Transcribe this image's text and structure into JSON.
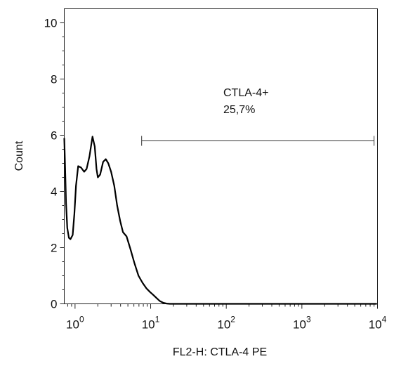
{
  "chart_data": {
    "type": "line",
    "title": "",
    "xlabel": "FL2-H:  CTLA-4 PE",
    "ylabel": "Count",
    "x_scale": "log",
    "xlim": [
      0.72,
      10000
    ],
    "ylim": [
      0,
      10.5
    ],
    "x_ticks": [
      {
        "value": 1,
        "base": "10",
        "exp": "0"
      },
      {
        "value": 10,
        "base": "10",
        "exp": "1"
      },
      {
        "value": 100,
        "base": "10",
        "exp": "2"
      },
      {
        "value": 1000,
        "base": "10",
        "exp": "3"
      },
      {
        "value": 10000,
        "base": "10",
        "exp": "4"
      }
    ],
    "y_ticks": [
      0,
      2,
      4,
      6,
      8,
      10
    ],
    "grid": false,
    "series": [
      {
        "color": "#000000",
        "x": [
          0.72,
          0.74,
          0.76,
          0.79,
          0.83,
          0.87,
          0.93,
          0.98,
          1.03,
          1.1,
          1.2,
          1.32,
          1.42,
          1.55,
          1.7,
          1.82,
          1.92,
          2.0,
          2.15,
          2.35,
          2.55,
          2.75,
          3.0,
          3.3,
          3.6,
          3.95,
          4.3,
          4.8,
          5.4,
          6.1,
          6.9,
          7.8,
          8.8,
          9.8,
          10.8,
          11.8,
          13.2,
          14.6,
          16.2,
          18.0,
          20.5,
          23.5,
          27.0,
          31.0,
          35.0,
          40.0,
          46.0,
          55.0,
          66.0,
          80.0,
          100.0,
          10000.0
        ],
        "y": [
          5.9,
          4.8,
          3.6,
          2.7,
          2.35,
          2.3,
          2.45,
          3.2,
          4.2,
          4.9,
          4.85,
          4.7,
          4.8,
          5.25,
          5.95,
          5.6,
          4.8,
          4.5,
          4.6,
          5.05,
          5.15,
          5.0,
          4.7,
          4.2,
          3.5,
          2.95,
          2.55,
          2.4,
          1.95,
          1.45,
          1.0,
          0.75,
          0.55,
          0.42,
          0.32,
          0.22,
          0.1,
          0.04,
          0.01,
          0.0,
          0.0,
          0.0,
          0.0,
          0.0,
          0.0,
          0.0,
          0.0,
          0.0,
          0.0,
          0.0,
          0.0,
          0.0
        ]
      }
    ],
    "annotations": [
      {
        "name": "CTLA-4+",
        "percent": "25,7%",
        "x_range": [
          7.6,
          9000
        ],
        "y": 5.8
      }
    ]
  }
}
